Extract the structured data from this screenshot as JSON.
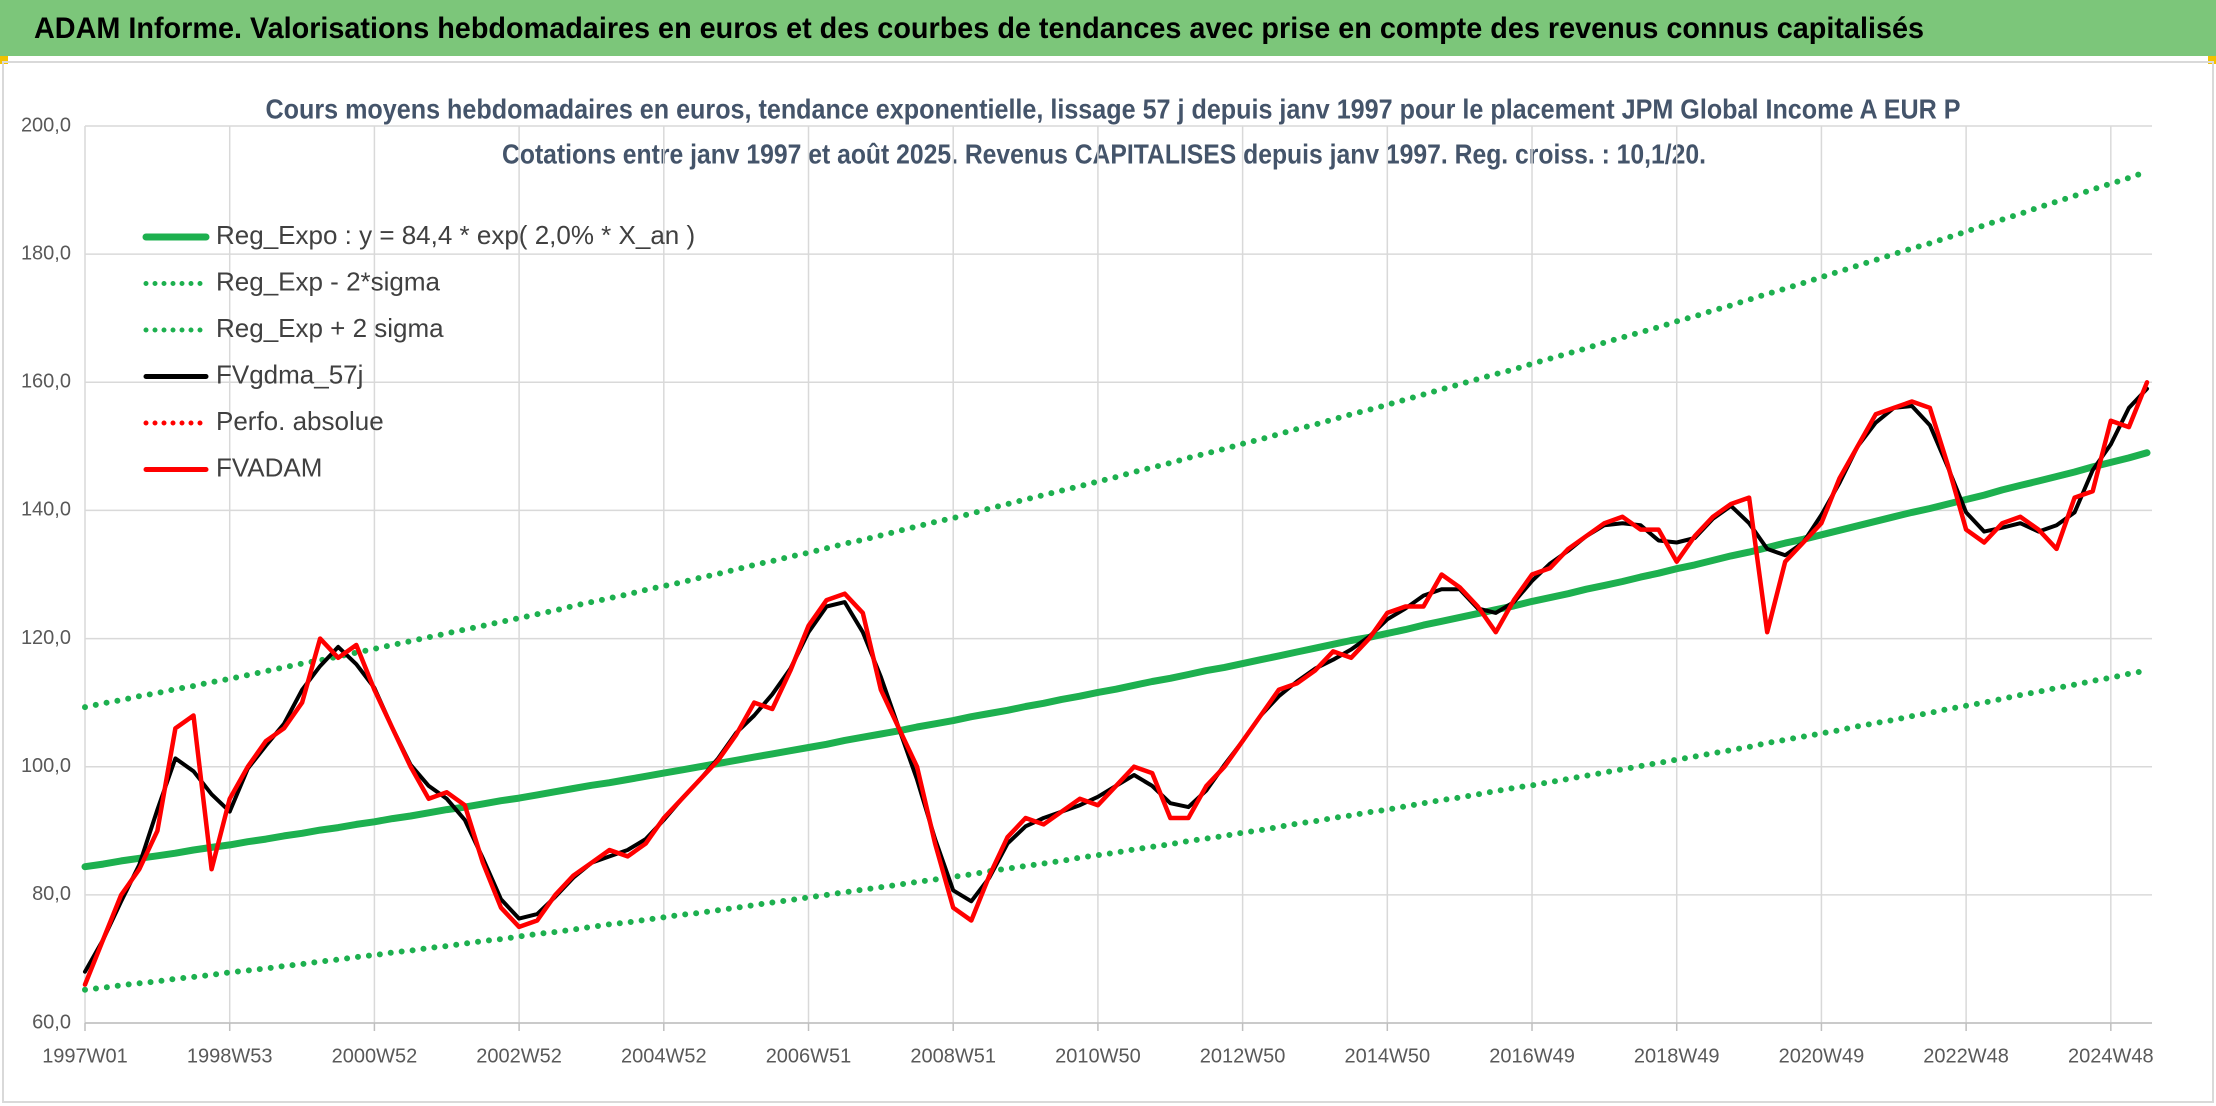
{
  "header": {
    "title": "ADAM Informe. Valorisations hebdomadaires en euros et des courbes de tendances avec prise en compte des revenus connus capitalisés"
  },
  "chart_data": {
    "type": "line",
    "title": "Cours moyens hebdomadaires en euros, tendance exponentielle, lissage 57 j depuis janv 1997 pour le placement JPM Global Income A EUR P",
    "subtitle": "Cotations entre janv 1997 et août 2025. Revenus CAPITALISES depuis janv 1997. Reg. croiss. : 10,1/20.",
    "categories": [
      "1997W01",
      null,
      null,
      null,
      null,
      null,
      null,
      null,
      "1998W53",
      null,
      null,
      null,
      null,
      null,
      null,
      null,
      "2000W52",
      null,
      null,
      null,
      null,
      null,
      null,
      null,
      "2002W52",
      null,
      null,
      null,
      null,
      null,
      null,
      null,
      "2004W52",
      null,
      null,
      null,
      null,
      null,
      null,
      null,
      "2006W51",
      null,
      null,
      null,
      null,
      null,
      null,
      null,
      "2008W51",
      null,
      null,
      null,
      null,
      null,
      null,
      null,
      "2010W50",
      null,
      null,
      null,
      null,
      null,
      null,
      null,
      "2012W50",
      null,
      null,
      null,
      null,
      null,
      null,
      null,
      "2014W50",
      null,
      null,
      null,
      null,
      null,
      null,
      null,
      "2016W49",
      null,
      null,
      null,
      null,
      null,
      null,
      null,
      "2018W49",
      null,
      null,
      null,
      null,
      null,
      null,
      null,
      "2020W49",
      null,
      null,
      null,
      null,
      null,
      null,
      null,
      "2022W48",
      null,
      null,
      null,
      null,
      null,
      null,
      null,
      "2024W48",
      null,
      null
    ],
    "ylim": [
      60,
      200
    ],
    "yticks": [
      {
        "value": 60,
        "label": "60,0"
      },
      {
        "value": 80,
        "label": "80,0"
      },
      {
        "value": 100,
        "label": "100,0"
      },
      {
        "value": 120,
        "label": "120,0"
      },
      {
        "value": 140,
        "label": "140,0"
      },
      {
        "value": 160,
        "label": "160,0"
      },
      {
        "value": 180,
        "label": "180,0"
      },
      {
        "value": 200,
        "label": "200,0"
      }
    ],
    "grid": true,
    "legend": "upper left",
    "series": [
      {
        "name": "Reg_Expo : y = 84,4 * exp( 2,0% *  X_an )",
        "color": "#1db04f",
        "style": "solid",
        "values": [
          84.4,
          84.8,
          85.3,
          85.7,
          86.1,
          86.5,
          87.0,
          87.4,
          87.8,
          88.3,
          88.7,
          89.2,
          89.6,
          90.1,
          90.5,
          91.0,
          91.4,
          91.9,
          92.3,
          92.8,
          93.3,
          93.7,
          94.2,
          94.7,
          95.1,
          95.6,
          96.1,
          96.6,
          97.1,
          97.5,
          98.0,
          98.5,
          99.0,
          99.5,
          100.0,
          100.5,
          101.0,
          101.5,
          102.0,
          102.5,
          103.0,
          103.5,
          104.1,
          104.6,
          105.1,
          105.6,
          106.2,
          106.7,
          107.2,
          107.8,
          108.3,
          108.8,
          109.4,
          109.9,
          110.5,
          111.0,
          111.6,
          112.1,
          112.7,
          113.3,
          113.8,
          114.4,
          115.0,
          115.5,
          116.1,
          116.7,
          117.3,
          117.9,
          118.5,
          119.1,
          119.7,
          120.2,
          120.8,
          121.4,
          122.1,
          122.7,
          123.3,
          123.9,
          124.5,
          125.1,
          125.8,
          126.4,
          127.0,
          127.7,
          128.3,
          128.9,
          129.6,
          130.2,
          130.9,
          131.5,
          132.2,
          132.9,
          133.5,
          134.2,
          134.9,
          135.5,
          136.2,
          136.9,
          137.6,
          138.3,
          139.0,
          139.7,
          140.3,
          141.0,
          141.7,
          142.4,
          143.2,
          143.9,
          144.6,
          145.3,
          146.0,
          146.8,
          147.5,
          148.2,
          149.0
        ]
      },
      {
        "name": "Reg_Exp - 2*sigma",
        "color": "#1db04f",
        "style": "dotted",
        "values": [
          65.2,
          65.5,
          65.9,
          66.2,
          66.5,
          66.9,
          67.2,
          67.5,
          67.9,
          68.2,
          68.5,
          68.9,
          69.2,
          69.6,
          69.9,
          70.3,
          70.6,
          71.0,
          71.3,
          71.7,
          72.0,
          72.4,
          72.8,
          73.1,
          73.5,
          73.9,
          74.2,
          74.6,
          75.0,
          75.4,
          75.7,
          76.1,
          76.5,
          76.9,
          77.2,
          77.6,
          78.0,
          78.4,
          78.8,
          79.2,
          79.6,
          80.0,
          80.4,
          80.8,
          81.2,
          81.6,
          82.0,
          82.4,
          82.8,
          83.2,
          83.7,
          84.1,
          84.5,
          84.9,
          85.3,
          85.8,
          86.2,
          86.6,
          87.1,
          87.5,
          87.9,
          88.4,
          88.8,
          89.2,
          89.7,
          90.1,
          90.6,
          91.1,
          91.5,
          92.0,
          92.4,
          92.9,
          93.3,
          93.8,
          94.3,
          94.8,
          95.2,
          95.7,
          96.2,
          96.7,
          97.1,
          97.6,
          98.1,
          98.6,
          99.1,
          99.6,
          100.1,
          100.6,
          101.1,
          101.6,
          102.1,
          102.6,
          103.1,
          103.7,
          104.2,
          104.7,
          105.2,
          105.7,
          106.3,
          106.8,
          107.3,
          107.9,
          108.4,
          109.0,
          109.5,
          110.0,
          110.6,
          111.2,
          111.7,
          112.3,
          112.8,
          113.4,
          113.9,
          114.5,
          115.0
        ]
      },
      {
        "name": "Reg_Exp + 2 sigma",
        "color": "#1db04f",
        "style": "dotted",
        "values": [
          109.3,
          109.9,
          110.4,
          111.0,
          111.5,
          112.1,
          112.6,
          113.2,
          113.7,
          114.3,
          114.9,
          115.5,
          116.1,
          116.6,
          117.2,
          117.8,
          118.4,
          119.0,
          119.6,
          120.2,
          120.8,
          121.4,
          122.0,
          122.6,
          123.2,
          123.8,
          124.4,
          125.1,
          125.7,
          126.3,
          126.9,
          127.6,
          128.2,
          128.8,
          129.5,
          130.1,
          130.8,
          131.5,
          132.1,
          132.8,
          133.4,
          134.1,
          134.8,
          135.4,
          136.1,
          136.8,
          137.5,
          138.2,
          138.8,
          139.5,
          140.3,
          141.0,
          141.7,
          142.4,
          143.1,
          143.8,
          144.5,
          145.2,
          146.0,
          146.7,
          147.4,
          148.2,
          148.9,
          149.6,
          150.4,
          151.1,
          151.9,
          152.7,
          153.4,
          154.2,
          155.0,
          155.7,
          156.5,
          157.3,
          158.1,
          158.9,
          159.7,
          160.5,
          161.3,
          162.0,
          162.9,
          163.7,
          164.5,
          165.3,
          166.2,
          167.0,
          167.8,
          168.6,
          169.5,
          170.3,
          171.2,
          172.0,
          172.9,
          173.8,
          174.6,
          175.5,
          176.4,
          177.3,
          178.2,
          179.1,
          180.0,
          180.9,
          181.7,
          182.6,
          183.5,
          184.5,
          185.4,
          186.3,
          187.3,
          188.2,
          189.1,
          190.1,
          191.0,
          191.9,
          192.9
        ]
      },
      {
        "name": "FVgdma_57j",
        "color": "#000000",
        "style": "solid",
        "values": [
          68,
          73,
          79,
          84.7,
          93.3,
          101.3,
          99.3,
          95.7,
          93,
          99.7,
          103.3,
          106.7,
          112,
          115.7,
          118.7,
          116,
          112.3,
          106,
          100.3,
          97,
          95,
          91.7,
          85.7,
          79.3,
          76.3,
          77,
          79.7,
          82.7,
          85,
          86,
          87,
          88.7,
          91.7,
          95,
          98,
          101.3,
          105.3,
          108,
          111.3,
          115.3,
          121,
          125,
          125.7,
          121,
          114,
          106,
          98,
          88.7,
          80.7,
          79,
          82.7,
          88,
          90.7,
          92,
          93,
          94,
          95.3,
          97,
          98.7,
          97,
          94.3,
          93.7,
          96.3,
          100.3,
          104,
          108,
          111,
          113.3,
          115.3,
          116.7,
          118.3,
          120.3,
          123,
          124.7,
          126.7,
          127.7,
          127.7,
          124.7,
          124,
          125.7,
          129,
          131.7,
          133.7,
          136,
          137.7,
          138,
          137.7,
          135.3,
          135,
          135.7,
          138.7,
          140.7,
          138,
          134,
          133,
          135,
          139.3,
          144.3,
          150,
          153.7,
          156,
          156.3,
          153.3,
          146.7,
          139.7,
          136.7,
          137.3,
          138,
          136.7,
          137.7,
          139.7,
          146.3,
          150.3,
          156,
          159
        ]
      },
      {
        "name": "Perfo. absolue",
        "color": "#ff0000",
        "style": "dotted"
      },
      {
        "name": "FVADAM",
        "color": "#ff0000",
        "style": "solid",
        "values": [
          66,
          73,
          80,
          84,
          90,
          106,
          108,
          84,
          95,
          100,
          104,
          106,
          110,
          120,
          117,
          119,
          112,
          106,
          100,
          95,
          96,
          94,
          85,
          78,
          75,
          76,
          80,
          83,
          85,
          87,
          86,
          88,
          92,
          95,
          98,
          101,
          105,
          110,
          109,
          115,
          122,
          126,
          127,
          124,
          112,
          106,
          100,
          88,
          78,
          76,
          83,
          89,
          92,
          91,
          93,
          95,
          94,
          97,
          100,
          99,
          92,
          92,
          97,
          100,
          104,
          108,
          112,
          113,
          115,
          118,
          117,
          120,
          124,
          125,
          125,
          130,
          128,
          125,
          121,
          126,
          130,
          131,
          134,
          136,
          138,
          139,
          137,
          137,
          132,
          136,
          139,
          141,
          142,
          121,
          132,
          135,
          138,
          145,
          150,
          155,
          156,
          157,
          156,
          147,
          137,
          135,
          138,
          139,
          137,
          134,
          142,
          143,
          154,
          153,
          160
        ]
      }
    ]
  }
}
